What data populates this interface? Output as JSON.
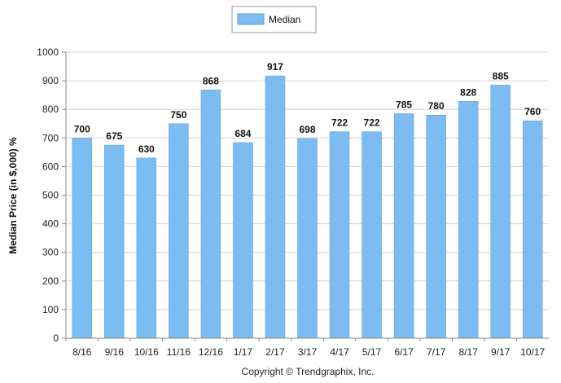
{
  "chart_data": {
    "type": "bar",
    "categories": [
      "8/16",
      "9/16",
      "10/16",
      "11/16",
      "12/16",
      "1/17",
      "2/17",
      "3/17",
      "4/17",
      "5/17",
      "6/17",
      "7/17",
      "8/17",
      "9/17",
      "10/17"
    ],
    "series": [
      {
        "name": "Median",
        "values": [
          700,
          675,
          630,
          750,
          868,
          684,
          917,
          698,
          722,
          722,
          785,
          780,
          828,
          885,
          760
        ]
      }
    ],
    "ylabel": "Median Price (in $,000) %",
    "xlabel": "",
    "ylim": [
      0,
      1000
    ],
    "yticks": [
      0,
      100,
      200,
      300,
      400,
      500,
      600,
      700,
      800,
      900,
      1000
    ],
    "grid": true,
    "legend_position": "top-center",
    "bar_color": "#7cbcf0",
    "bar_edge_color": "#5aa0de"
  },
  "footer": {
    "copyright": "Copyright © Trendgraphix, Inc."
  }
}
